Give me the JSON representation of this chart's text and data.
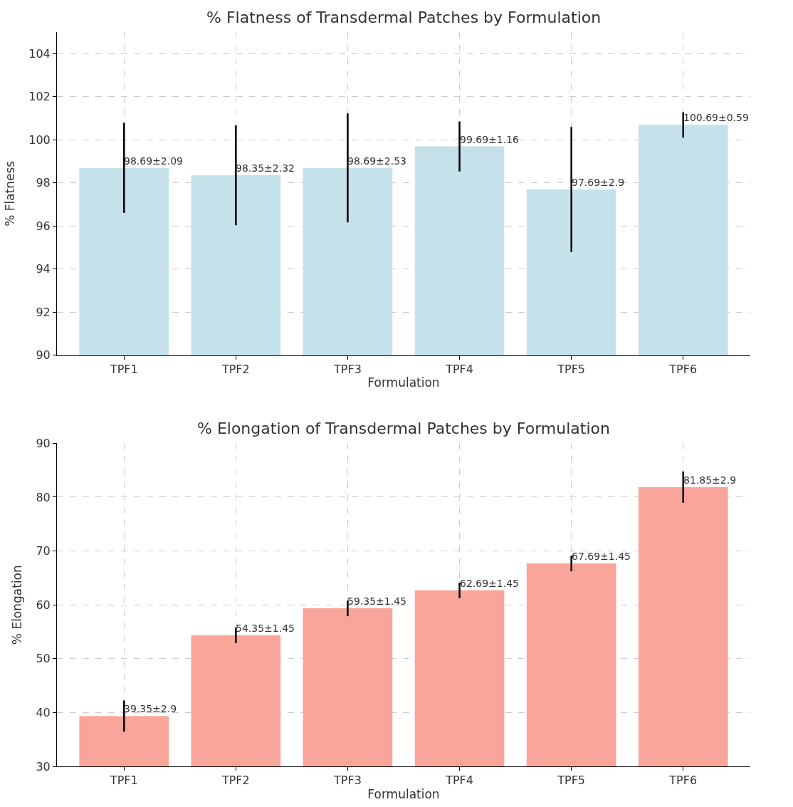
{
  "chart_data": [
    {
      "type": "bar",
      "title": "% Flatness of Transdermal Patches by Formulation",
      "xlabel": "Formulation",
      "ylabel": "% Flatness",
      "categories": [
        "TPF1",
        "TPF2",
        "TPF3",
        "TPF4",
        "TPF5",
        "TPF6"
      ],
      "values": [
        98.69,
        98.35,
        98.69,
        99.69,
        97.69,
        100.69
      ],
      "errors": [
        2.09,
        2.32,
        2.53,
        1.16,
        2.9,
        0.59
      ],
      "value_labels": [
        "98.69±2.09",
        "98.35±2.32",
        "98.69±2.53",
        "99.69±1.16",
        "97.69±2.9",
        "100.69±0.59"
      ],
      "color": "#c5e2ea",
      "ylim": [
        90,
        105
      ],
      "yticks": [
        90,
        92,
        94,
        96,
        98,
        100,
        102,
        104
      ],
      "grid": true
    },
    {
      "type": "bar",
      "title": "% Elongation of Transdermal Patches by Formulation",
      "xlabel": "Formulation",
      "ylabel": "% Elongation",
      "categories": [
        "TPF1",
        "TPF2",
        "TPF3",
        "TPF4",
        "TPF5",
        "TPF6"
      ],
      "values": [
        39.35,
        54.35,
        59.35,
        62.69,
        67.69,
        81.85
      ],
      "errors": [
        2.9,
        1.45,
        1.45,
        1.45,
        1.45,
        2.9
      ],
      "value_labels": [
        "39.35±2.9",
        "54.35±1.45",
        "59.35±1.45",
        "62.69±1.45",
        "67.69±1.45",
        "81.85±2.9"
      ],
      "color": "#f9a59a",
      "ylim": [
        30,
        90
      ],
      "yticks": [
        30,
        40,
        50,
        60,
        70,
        80,
        90
      ],
      "grid": true
    }
  ]
}
